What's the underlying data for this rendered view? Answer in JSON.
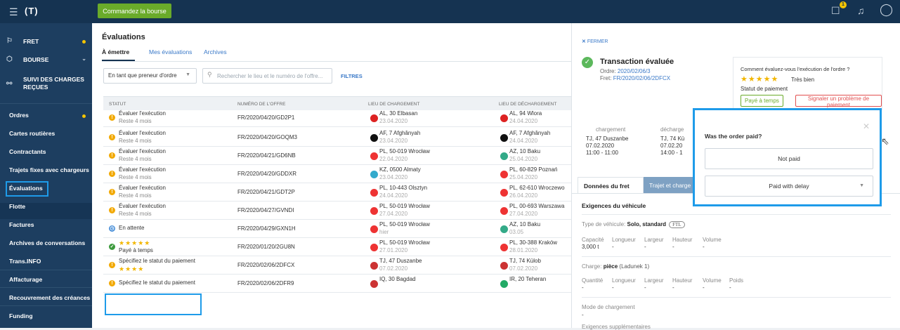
{
  "topbar": {
    "logo": "(T)",
    "order_button": "Commandez la bourse",
    "badge_count": "1"
  },
  "sidebar": {
    "top_items": [
      {
        "label": "FRET",
        "icon": "freight-icon"
      },
      {
        "label": "BOURSE",
        "icon": "cube-icon"
      },
      {
        "label": "SUIVI DES CHARGES",
        "label2": "REÇUES",
        "icon": "tracking-icon"
      }
    ],
    "items": [
      "Ordres",
      "Cartes routières",
      "Contractants",
      "Trajets fixes avec chargeurs",
      "Évaluations",
      "Flotte",
      "Factures",
      "Archives de conversations",
      "Trans.INFO",
      "Affacturage",
      "Recouvrement des créances",
      "Funding"
    ]
  },
  "main": {
    "title": "Évaluations",
    "tabs": [
      "À émettre",
      "Mes évaluations",
      "Archives"
    ],
    "role_select": "En tant que preneur d'ordre",
    "search_placeholder": "Rechercher le lieu et le numéro de l'offre...",
    "filters": "FILTRES",
    "columns": [
      "STATUT",
      "NUMÉRO DE L'OFFRE",
      "LIEU DE CHARGEMENT",
      "LIEU DE DÉCHARGEMENT"
    ],
    "rows": [
      {
        "status": "Évaluer l'exécution",
        "sub": "Reste 4 mois",
        "kind": "warn",
        "offer": "FR/2020/04/20/GD2P1",
        "load": "AL, 30 Elbasan",
        "load_date": "23.04.2020",
        "unload": "AL, 94 Wlora",
        "unload_date": "24.04.2020"
      },
      {
        "status": "Évaluer l'exécution",
        "sub": "Reste 4 mois",
        "kind": "warn",
        "offer": "FR/2020/04/20/GOQM3",
        "load": "AF, 7 Afghânyah",
        "load_date": "23.04.2020",
        "unload": "AF, 7 Afghânyah",
        "unload_date": "24.04.2020"
      },
      {
        "status": "Évaluer l'exécution",
        "sub": "Reste 4 mois",
        "kind": "warn",
        "offer": "FR/2020/04/21/GD6NB",
        "load": "PL, 50-019 Wrocław",
        "load_date": "22.04.2020",
        "unload": "AZ, 10 Baku",
        "unload_date": "25.04.2020"
      },
      {
        "status": "Évaluer l'exécution",
        "sub": "Reste 4 mois",
        "kind": "warn",
        "offer": "FR/2020/04/20/GDDXR",
        "load": "KZ, 0500 Almaty",
        "load_date": "23.04.2020",
        "unload": "PL, 60-829 Poznań",
        "unload_date": "25.04.2020"
      },
      {
        "status": "Évaluer l'exécution",
        "sub": "Reste 4 mois",
        "kind": "warn",
        "offer": "FR/2020/04/21/GDT2P",
        "load": "PL, 10-443 Olsztyn",
        "load_date": "24.04.2020",
        "unload": "PL, 62-610 Wroczewo",
        "unload_date": "26.04.2020"
      },
      {
        "status": "Évaluer l'exécution",
        "sub": "Reste 4 mois",
        "kind": "warn",
        "offer": "FR/2020/04/27/GVNDI",
        "load": "PL, 50-019 Wrocław",
        "load_date": "27.04.2020",
        "unload": "PL, 00-693 Warszawa",
        "unload_date": "27.04.2020"
      },
      {
        "status": "En attente",
        "sub": "",
        "kind": "wait",
        "offer": "FR/2020/04/29/GXN1H",
        "load": "PL, 50-019 Wrocław",
        "load_date": "hier",
        "unload": "AZ, 10 Baku",
        "unload_date": "03.05"
      },
      {
        "status": "★★★★★",
        "sub": "Payé à temps",
        "kind": "ok",
        "offer": "FR/2020/01/20/2GU8N",
        "load": "PL, 50-019 Wrocław",
        "load_date": "27.01.2020",
        "unload": "PL, 30-388 Kraków",
        "unload_date": "28.01.2020"
      },
      {
        "status": "Spécifiez le statut du paiement",
        "sub": "★★★★",
        "kind": "warn",
        "offer": "FR/2020/02/06/2DFCX",
        "load": "TJ, 47 Duszanbe",
        "load_date": "07.02.2020",
        "unload": "TJ, 74 Külob",
        "unload_date": "07.02.2020"
      },
      {
        "status": "Spécifiez le statut du paiement",
        "sub": "",
        "kind": "warn",
        "offer": "FR/2020/02/06/2DFR9",
        "load": "IQ, 30 Bagdad",
        "load_date": "",
        "unload": "IR, 20 Teheran",
        "unload_date": ""
      }
    ]
  },
  "panel": {
    "close": "FERMER",
    "title": "Transaction évaluée",
    "order_label": "Ordre:",
    "order": "2020/02/06/3",
    "freight_label": "Fret:",
    "freight": "FR/2020/02/06/2DFCX",
    "eval_question": "Comment évaluez-vous l'exécution de l'ordre ?",
    "eval_stars": "★★★★★",
    "eval_value": "Très bien",
    "payment_status": "Statut de paiement",
    "paid_on_time": "Payé à temps",
    "report_problem": "Signaler un problème de paiement",
    "loading_label": "chargement",
    "loading_lines": [
      "TJ, 47 Duszanbe",
      "07.02.2020",
      "11:00 - 11:00"
    ],
    "unloading_label": "décharge",
    "unloading_lines": [
      "TJ, 74 Kü",
      "07.02.20",
      "14:00 - 1"
    ],
    "tab_active": "Données du fret",
    "tab_other": "Trajet et charge",
    "vehicle_section": "Exigences du véhicule",
    "vehicle_type_label": "Type de véhicule:",
    "vehicle_type": "Solo, standard",
    "ftl": "FTL",
    "vehicle_fields": [
      "Capacité",
      "Longueur",
      "Largeur",
      "Hauteur",
      "Volume"
    ],
    "vehicle_values": [
      "3,000 t",
      "-",
      "-",
      "-",
      "-"
    ],
    "cargo_label": "Charge:",
    "cargo": "pièce",
    "cargo_extra": "(Ladunek 1)",
    "cargo_fields": [
      "Quantité",
      "Longueur",
      "Largeur",
      "Hauteur",
      "Volume",
      "Poids"
    ],
    "cargo_values": [
      "-",
      "-",
      "-",
      "-",
      "-",
      "-"
    ],
    "loading_mode": "Mode de chargement",
    "loading_mode_value": "-",
    "extra_req": "Exigences supplémentaires"
  },
  "popup": {
    "question": "Was the order paid?",
    "not_paid": "Not paid",
    "paid_delay": "Paid with delay"
  }
}
